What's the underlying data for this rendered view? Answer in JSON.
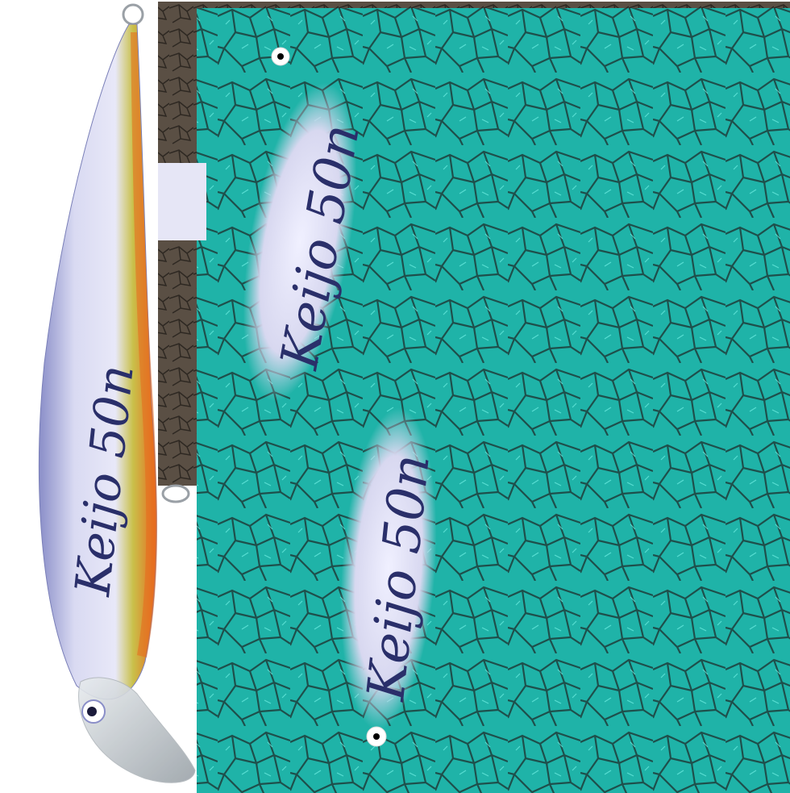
{
  "lure_marking": "Keijo 50n",
  "colors": {
    "texture_teal": "#1fb3a8",
    "texture_dark": "#1e4f4b",
    "leather_brown": "#5a4f44",
    "lure_body": "#dcdcf5",
    "lure_belly_orange": "#e86a1e",
    "lure_yellow": "#c9c04a",
    "marking_ink": "#2a2f6a"
  }
}
